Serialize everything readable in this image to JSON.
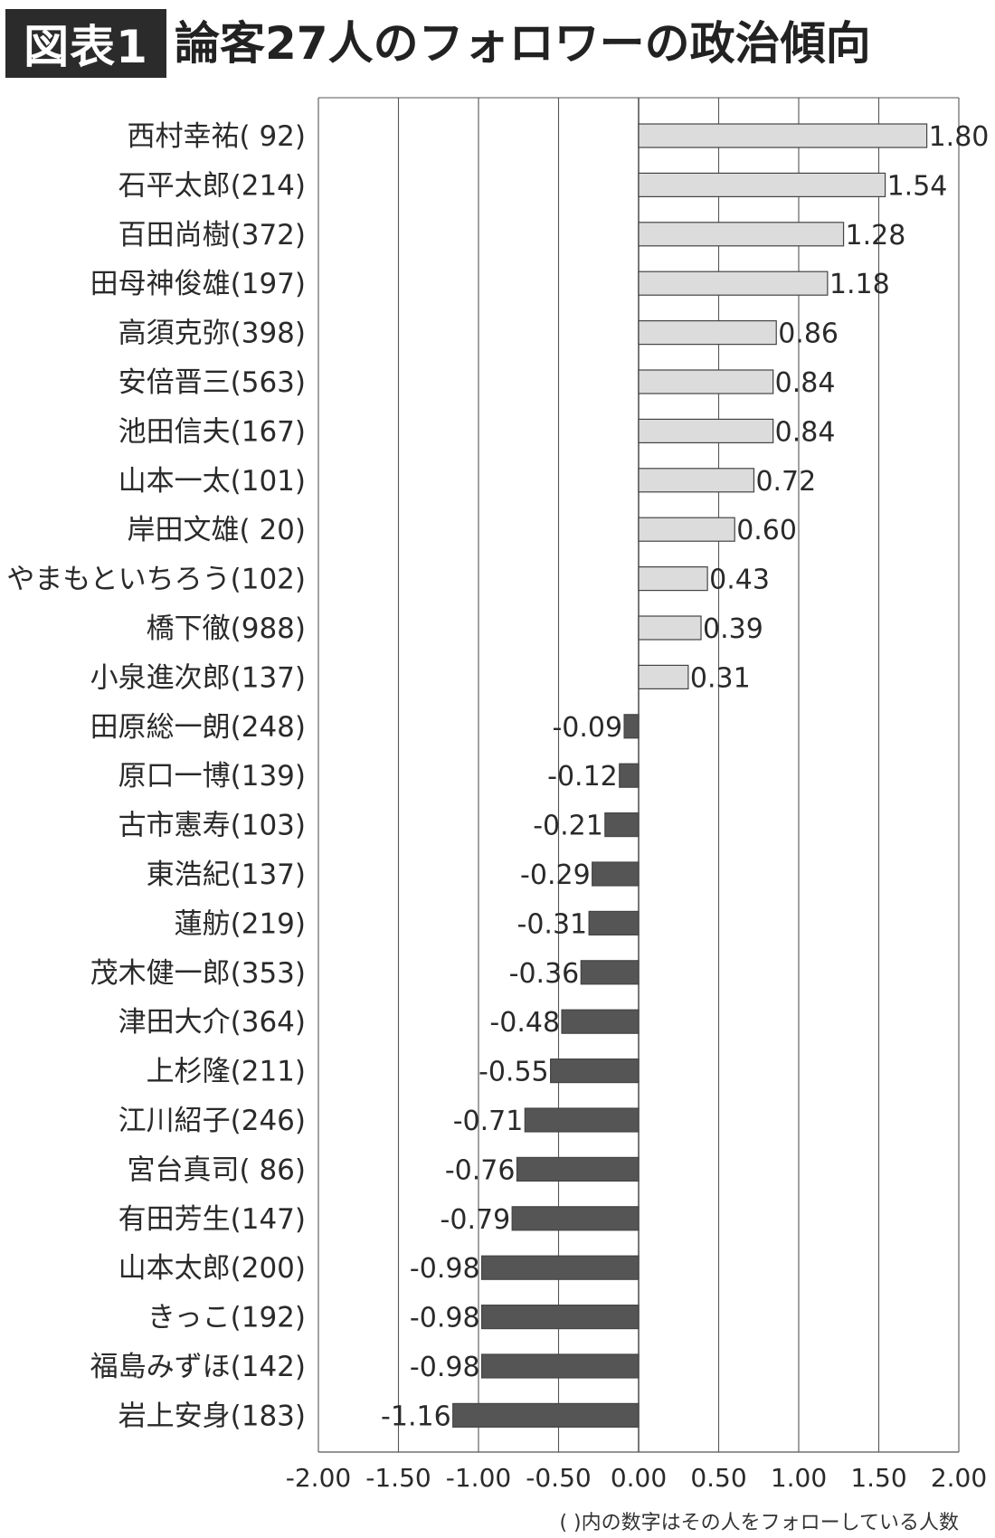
{
  "header": {
    "badge": "図表1",
    "title": "論客27人のフォロワーの政治傾向"
  },
  "colors": {
    "positive": "#dcdcdc",
    "negative": "#555555",
    "bar_stroke": "#444444",
    "grid": "#555555"
  },
  "chart_data": {
    "type": "bar",
    "orientation": "horizontal",
    "title": "論客27人のフォロワーの政治傾向",
    "xlim": [
      -2.0,
      2.0
    ],
    "x_ticks": [
      "-2.00",
      "-1.50",
      "-1.00",
      "-0.50",
      "0.00",
      "0.50",
      "1.00",
      "1.50",
      "2.00"
    ],
    "grid": true,
    "categories": [
      "西村幸祐(  92)",
      "石平太郎(214)",
      "百田尚樹(372)",
      "田母神俊雄(197)",
      "高須克弥(398)",
      "安倍晋三(563)",
      "池田信夫(167)",
      "山本一太(101)",
      "岸田文雄(  20)",
      "やまもといちろう(102)",
      "橋下徹(988)",
      "小泉進次郎(137)",
      "田原総一朗(248)",
      "原口一博(139)",
      "古市憲寿(103)",
      "東浩紀(137)",
      "蓮舫(219)",
      "茂木健一郎(353)",
      "津田大介(364)",
      "上杉隆(211)",
      "江川紹子(246)",
      "宮台真司(  86)",
      "有田芳生(147)",
      "山本太郎(200)",
      "きっこ(192)",
      "福島みずほ(142)",
      "岩上安身(183)"
    ],
    "values": [
      1.8,
      1.54,
      1.28,
      1.18,
      0.86,
      0.84,
      0.84,
      0.72,
      0.6,
      0.43,
      0.39,
      0.31,
      -0.09,
      -0.12,
      -0.21,
      -0.29,
      -0.31,
      -0.36,
      -0.48,
      -0.55,
      -0.71,
      -0.76,
      -0.79,
      -0.98,
      -0.98,
      -0.98,
      -1.16
    ],
    "labels": [
      "1.80",
      "1.54",
      "1.28",
      "1.18",
      "0.86",
      "0.84",
      "0.84",
      "0.72",
      "0.60",
      "0.43",
      "0.39",
      "0.31",
      "-0.09",
      "-0.12",
      "-0.21",
      "-0.29",
      "-0.31",
      "-0.36",
      "-0.48",
      "-0.55",
      "-0.71",
      "-0.76",
      "-0.79",
      "-0.98",
      "-0.98",
      "-0.98",
      "-1.16"
    ],
    "footnote": "(   )内の数字はその人をフォローしている人数"
  }
}
